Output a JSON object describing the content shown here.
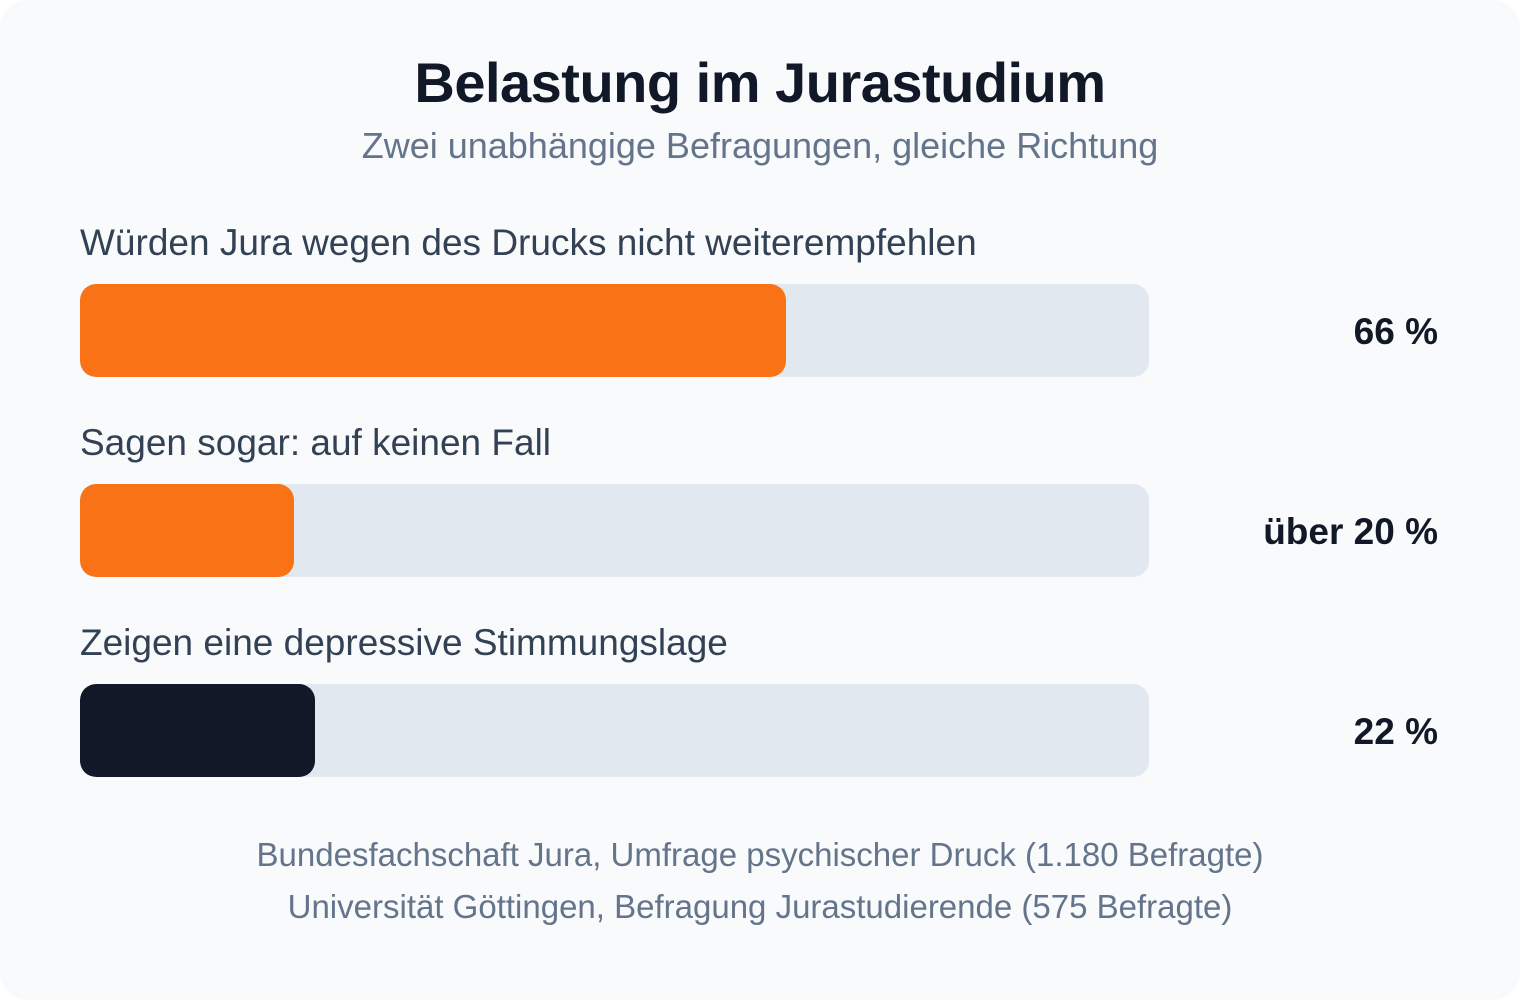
{
  "title": "Belastung im Jurastudium",
  "subtitle": "Zwei unabhängige Befragungen, gleiche Richtung",
  "colors": {
    "accent": "#f97316",
    "dark": "#111827",
    "track": "#e2e8f0",
    "background": "#f8fafc"
  },
  "chart_data": {
    "type": "bar",
    "orientation": "horizontal",
    "title": "Belastung im Jurastudium",
    "subtitle": "Zwei unabhängige Befragungen, gleiche Richtung",
    "xlim": [
      0,
      100
    ],
    "unit": "%",
    "bars": [
      {
        "label": "Würden Jura wegen des Drucks nicht weiterempfehlen",
        "value": 66,
        "value_label": "66 %",
        "color": "#f97316"
      },
      {
        "label": "Sagen sogar: auf keinen Fall",
        "value": 20,
        "value_label": "über 20 %",
        "color": "#f97316"
      },
      {
        "label": "Zeigen eine depressive Stimmungslage",
        "value": 22,
        "value_label": "22 %",
        "color": "#111827"
      }
    ]
  },
  "sources": [
    "Bundesfachschaft Jura, Umfrage psychischer Druck (1.180 Befragte)",
    "Universität Göttingen, Befragung Jurastudierende (575 Befragte)"
  ]
}
